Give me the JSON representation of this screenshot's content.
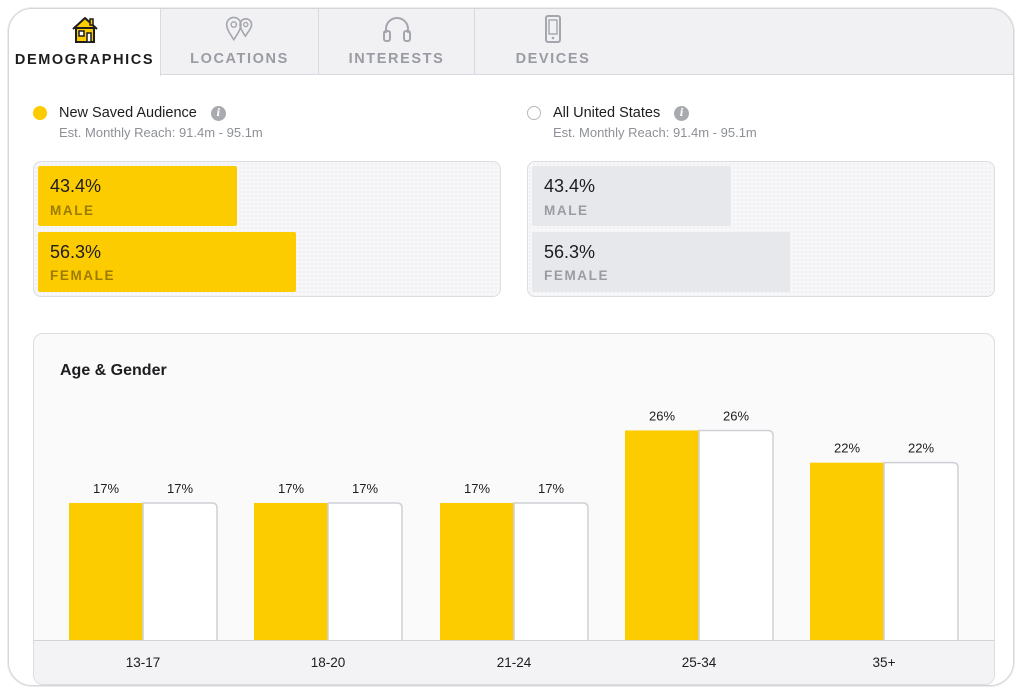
{
  "tabs": [
    {
      "label": "DEMOGRAPHICS",
      "icon": "house-icon",
      "active": true
    },
    {
      "label": "LOCATIONS",
      "icon": "map-pin-icon",
      "active": false
    },
    {
      "label": "INTERESTS",
      "icon": "headphones-icon",
      "active": false
    },
    {
      "label": "DEVICES",
      "icon": "phone-icon",
      "active": false
    }
  ],
  "colors": {
    "accent": "#fccc00",
    "neutral_bar": "#e7e8ec",
    "bar_outline": "#cfd0d6"
  },
  "audiences": [
    {
      "name": "New Saved Audience",
      "reach": "Est. Monthly Reach: 91.4m - 95.1m",
      "selected": true,
      "gender": {
        "male": {
          "pct": "43.4%",
          "label": "MALE",
          "value": 43.4
        },
        "female": {
          "pct": "56.3%",
          "label": "FEMALE",
          "value": 56.3
        }
      }
    },
    {
      "name": "All United States",
      "reach": "Est. Monthly Reach: 91.4m - 95.1m",
      "selected": false,
      "gender": {
        "male": {
          "pct": "43.4%",
          "label": "MALE",
          "value": 43.4
        },
        "female": {
          "pct": "56.3%",
          "label": "FEMALE",
          "value": 56.3
        }
      }
    }
  ],
  "chart_data": {
    "type": "bar",
    "title": "Age & Gender",
    "categories": [
      "13-17",
      "18-20",
      "21-24",
      "25-34",
      "35+"
    ],
    "series": [
      {
        "values": [
          17,
          17,
          17,
          26,
          22
        ],
        "labels": [
          "17%",
          "17%",
          "17%",
          "26%",
          "22%"
        ]
      },
      {
        "values": [
          17,
          17,
          17,
          26,
          22
        ],
        "labels": [
          "17%",
          "17%",
          "17%",
          "26%",
          "22%"
        ]
      }
    ],
    "ylim": [
      0,
      35
    ],
    "grid": false
  }
}
